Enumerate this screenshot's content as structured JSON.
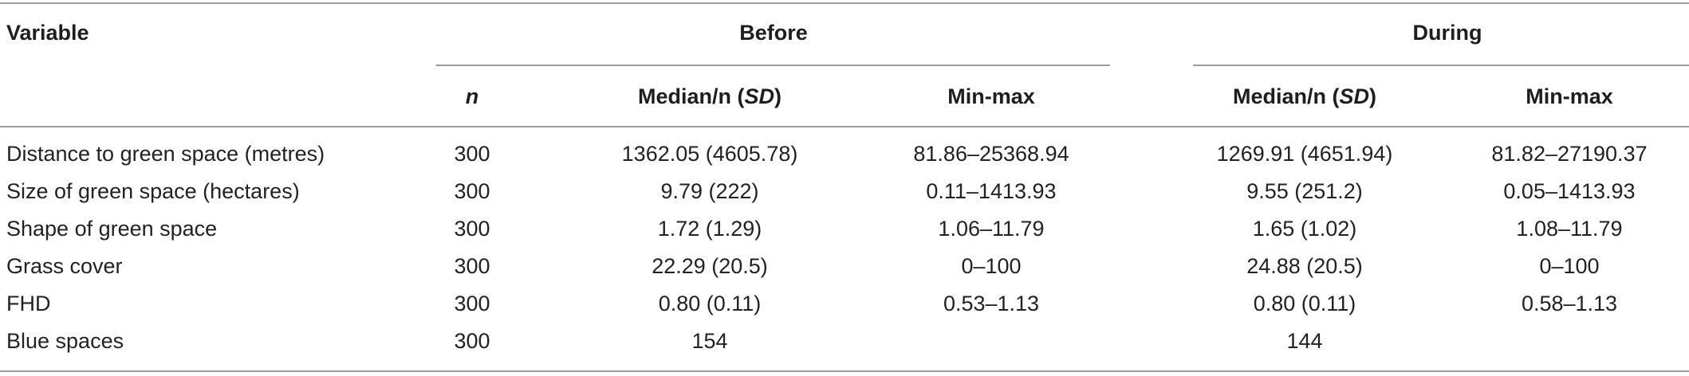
{
  "table": {
    "headers": {
      "variable": "Variable",
      "before": "Before",
      "during": "During",
      "n": "n",
      "median_prefix": "Median/n (",
      "median_sd": "SD",
      "median_suffix": ")",
      "minmax": "Min-max"
    },
    "rows": [
      {
        "variable": "Distance to green space (metres)",
        "n": "300",
        "before_median": "1362.05 (4605.78)",
        "before_minmax": "81.86–25368.94",
        "during_median": "1269.91 (4651.94)",
        "during_minmax": "81.82–27190.37"
      },
      {
        "variable": "Size of green space (hectares)",
        "n": "300",
        "before_median": "9.79 (222)",
        "before_minmax": "0.11–1413.93",
        "during_median": "9.55 (251.2)",
        "during_minmax": "0.05–1413.93"
      },
      {
        "variable": "Shape of green space",
        "n": "300",
        "before_median": "1.72 (1.29)",
        "before_minmax": "1.06–11.79",
        "during_median": "1.65 (1.02)",
        "during_minmax": "1.08–11.79"
      },
      {
        "variable": "Grass cover",
        "n": "300",
        "before_median": "22.29 (20.5)",
        "before_minmax": "0–100",
        "during_median": "24.88 (20.5)",
        "during_minmax": "0–100"
      },
      {
        "variable": "FHD",
        "n": "300",
        "before_median": "0.80 (0.11)",
        "before_minmax": "0.53–1.13",
        "during_median": "0.80 (0.11)",
        "during_minmax": "0.58–1.13"
      },
      {
        "variable": "Blue spaces",
        "n": "300",
        "before_median": "154",
        "before_minmax": "",
        "during_median": "144",
        "during_minmax": ""
      }
    ]
  }
}
